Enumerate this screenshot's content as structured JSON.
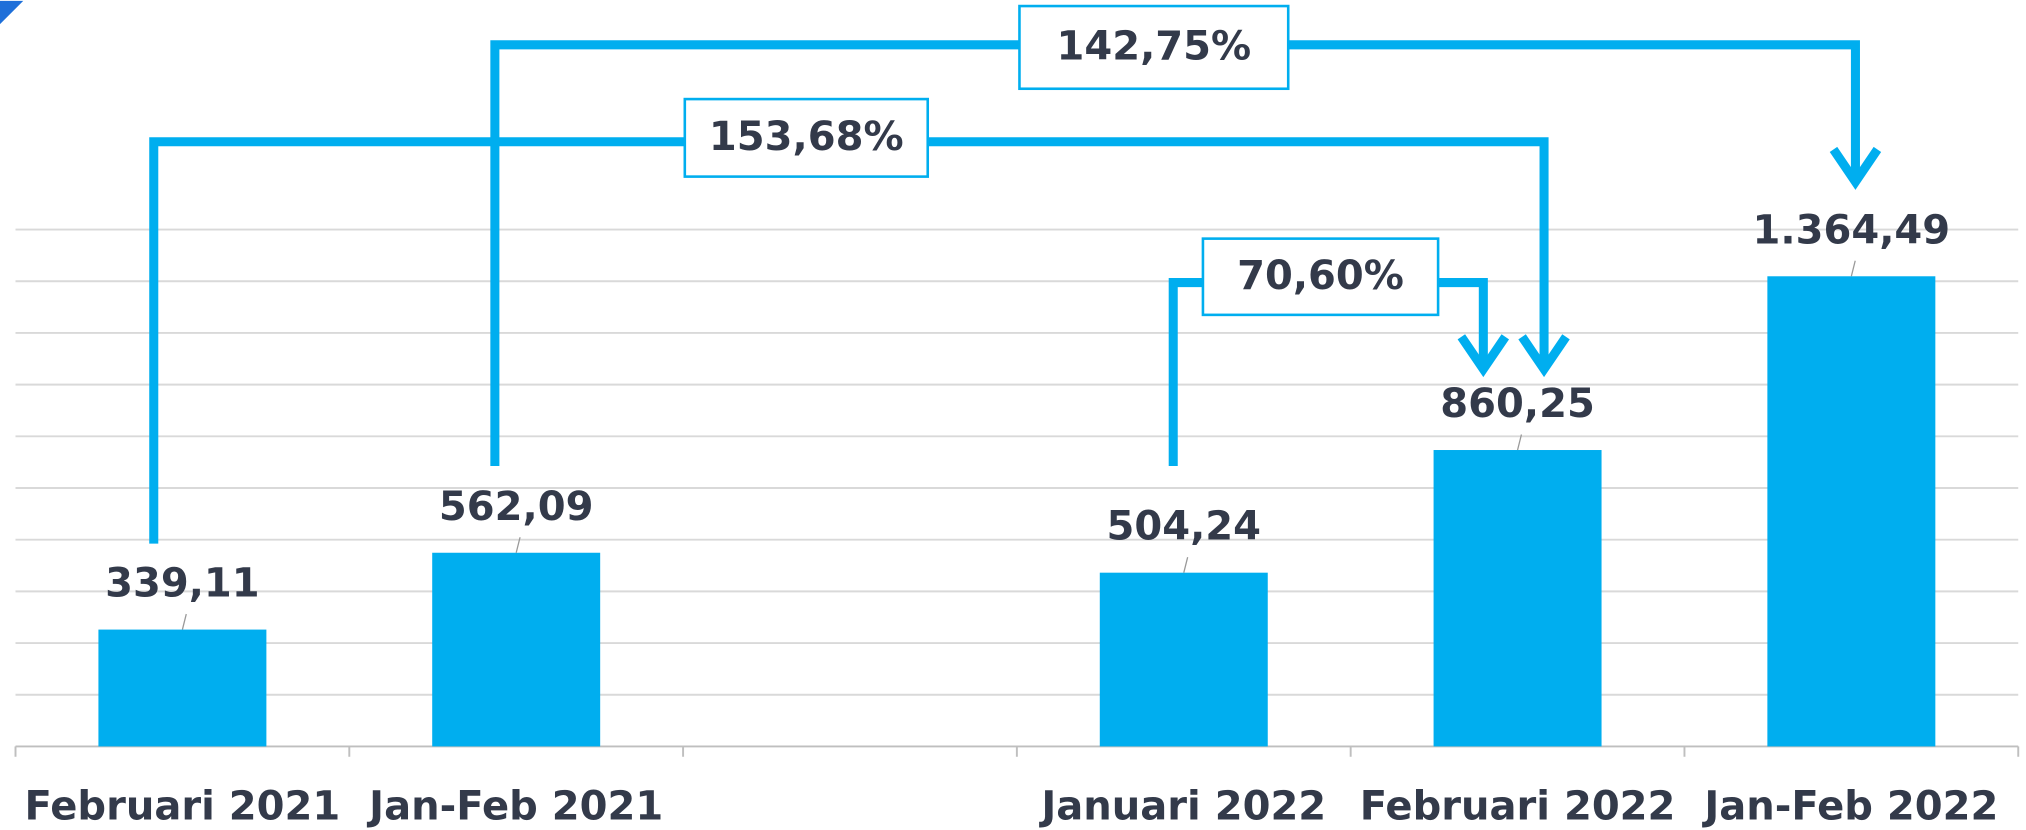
{
  "chart_data": {
    "type": "bar",
    "categories": [
      "Februari 2021",
      "Jan-Feb 2021",
      null,
      "Januari 2022",
      "Februari 2022",
      "Jan-Feb 2022"
    ],
    "values": [
      339.11,
      562.09,
      null,
      504.24,
      860.25,
      1364.49
    ],
    "value_labels": [
      "339,11",
      "562,09",
      null,
      "504,24",
      "860,25",
      "1.364,49"
    ],
    "color": "#00aeef",
    "ylim": [
      0,
      1500
    ],
    "yticks": [
      0,
      150,
      300,
      450,
      600,
      750,
      900,
      1050,
      1200,
      1350,
      1500
    ],
    "grid": true,
    "annotations": [
      "142,75%",
      "153,68%",
      "70,60%"
    ]
  }
}
